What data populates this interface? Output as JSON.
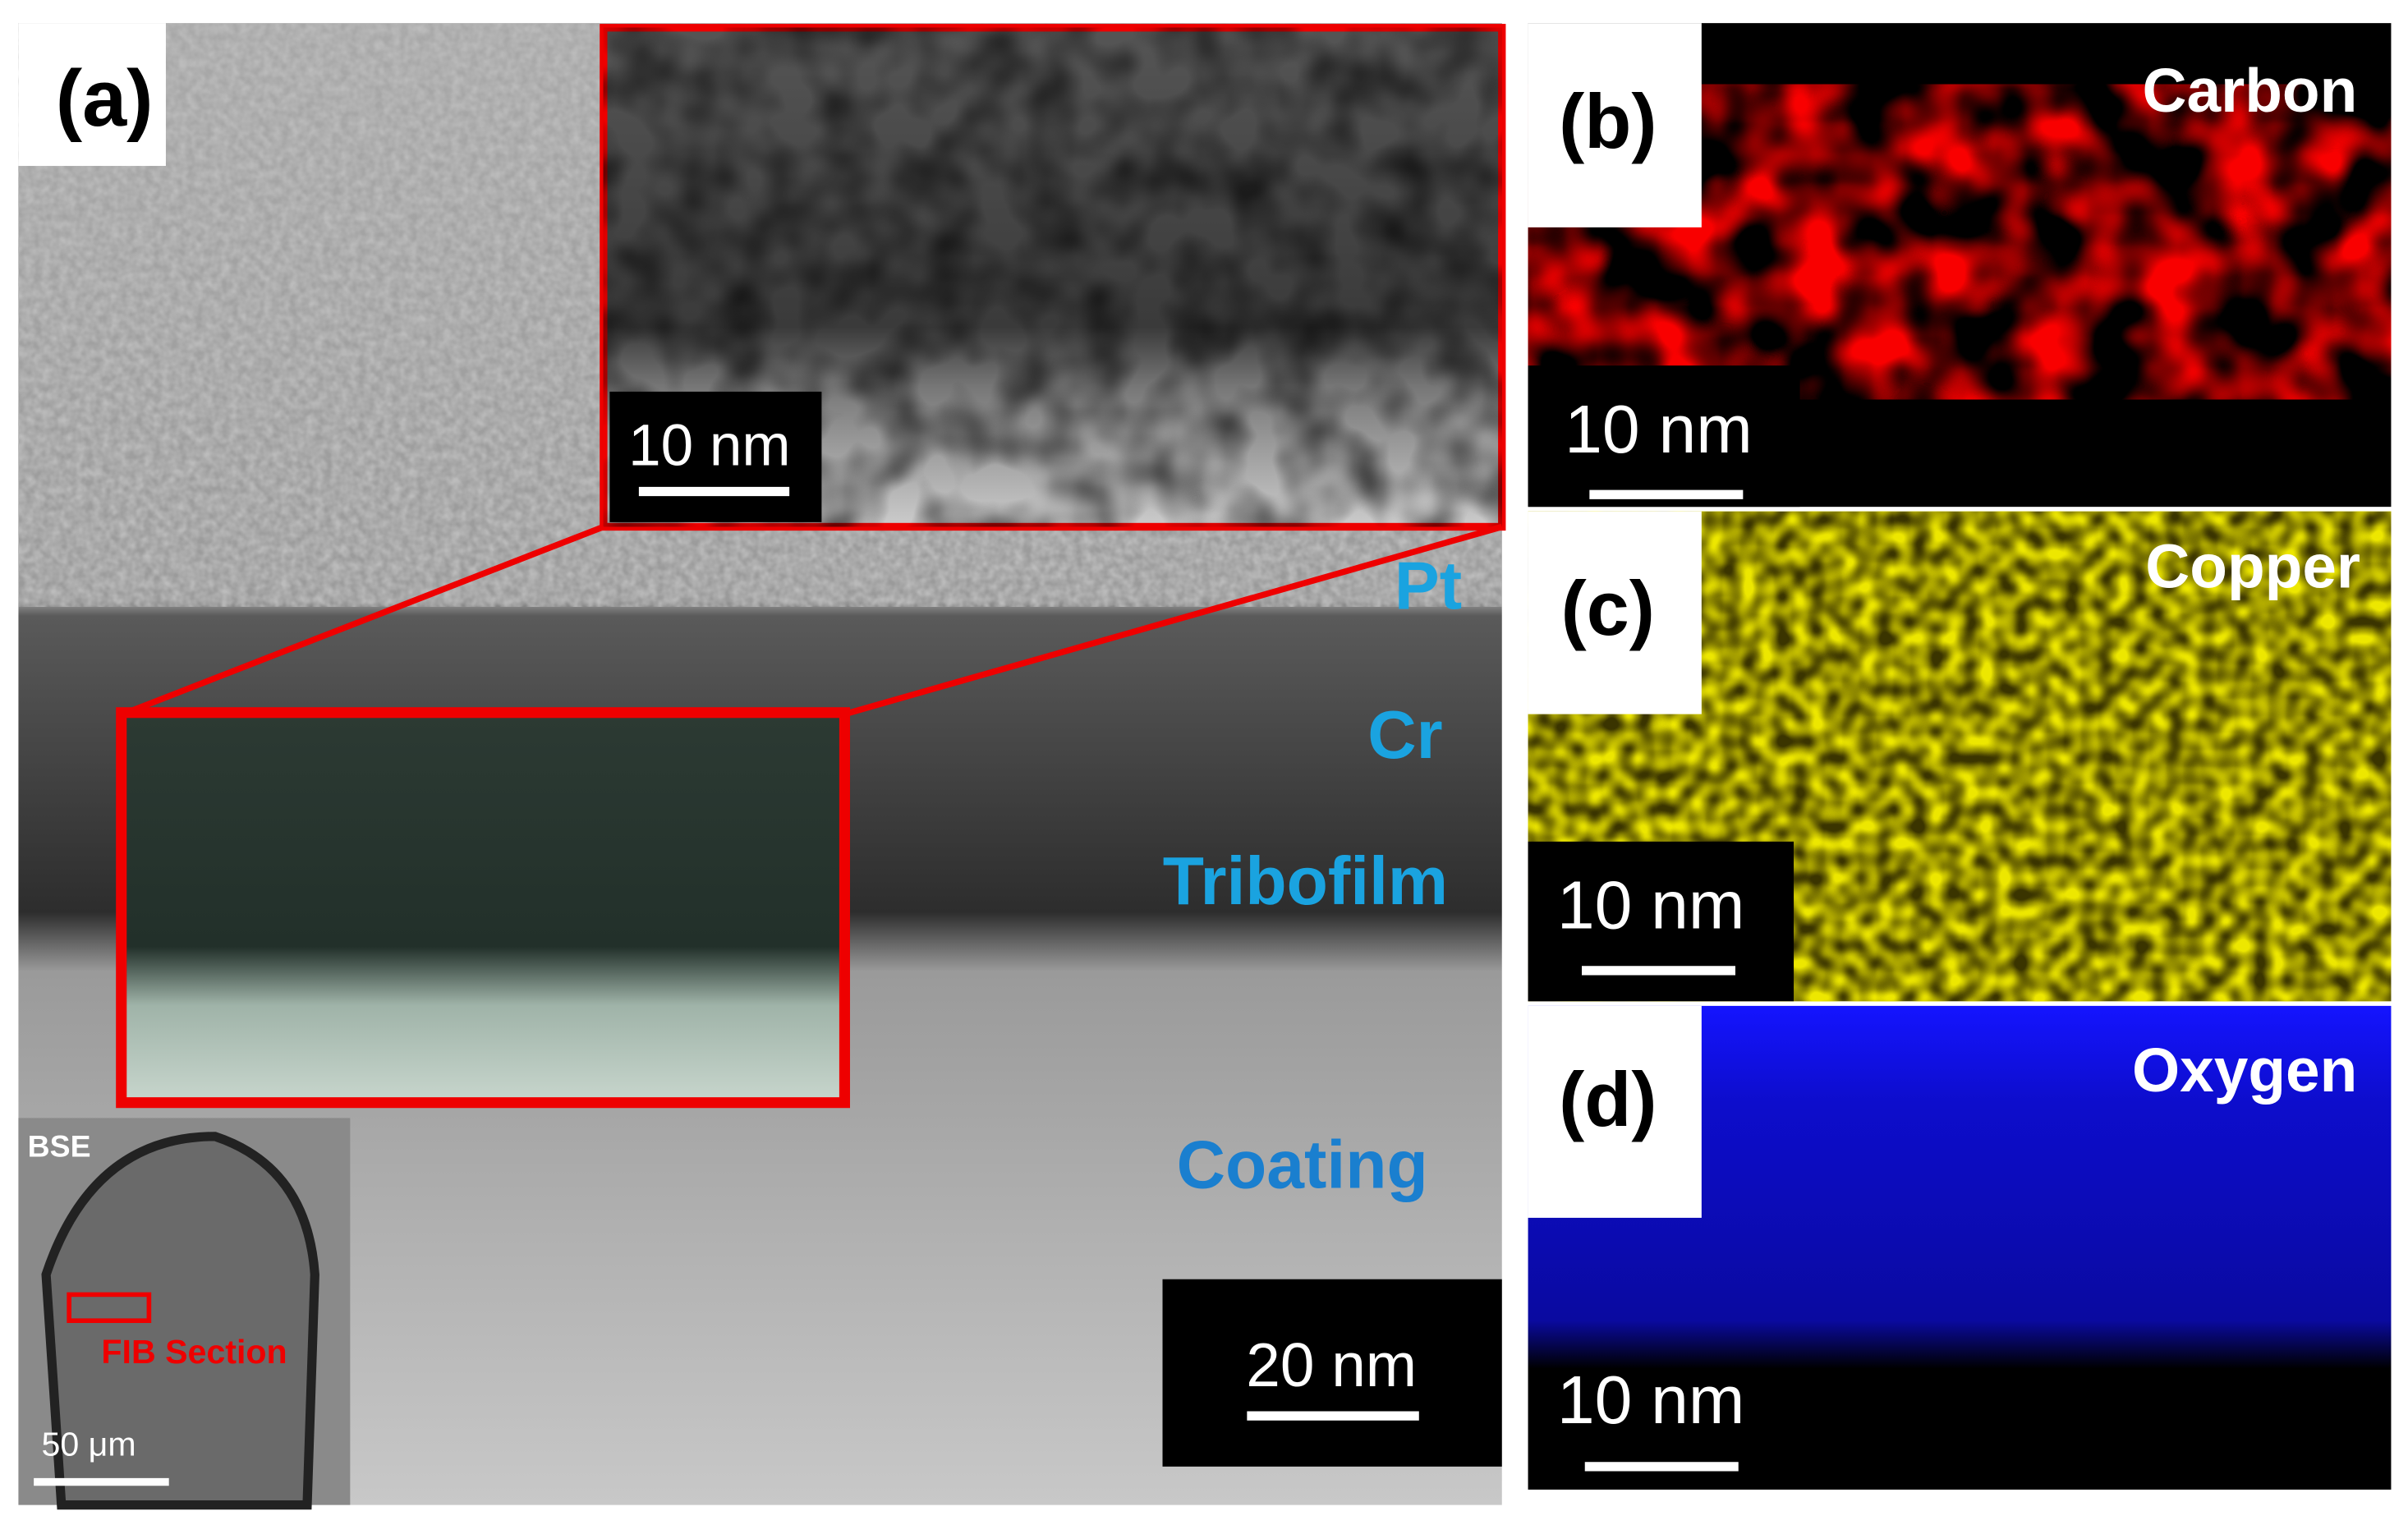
{
  "panel_a": {
    "label": "(a)",
    "layers": [
      "Pt",
      "Cr",
      "Tribofilm",
      "Coating"
    ],
    "scale": "20 nm",
    "inset_scale": "10 nm",
    "bse_inset": {
      "title": "BSE",
      "marker": "FIB Section",
      "scale": "50 μm"
    }
  },
  "panel_b": {
    "label": "(b)",
    "element": "Carbon",
    "scale": "10 nm"
  },
  "panel_c": {
    "label": "(c)",
    "element": "Copper",
    "scale": "10 nm"
  },
  "panel_d": {
    "label": "(d)",
    "element": "Oxygen",
    "scale": "10 nm"
  }
}
